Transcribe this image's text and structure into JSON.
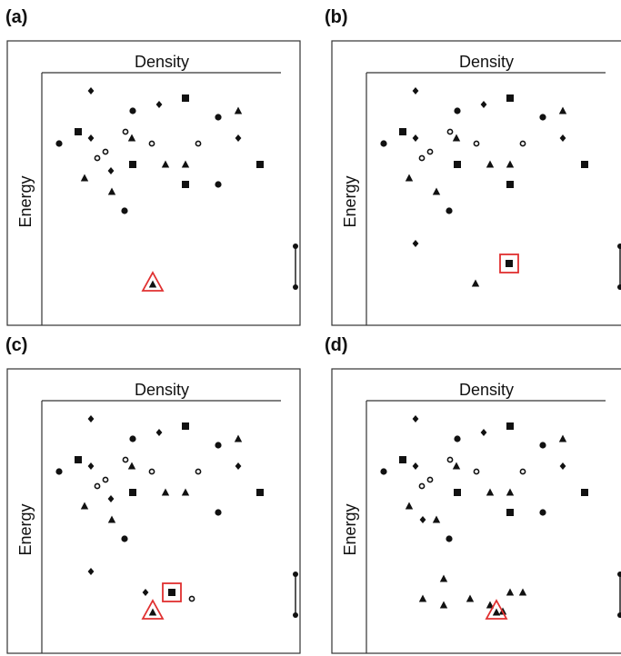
{
  "colors": {
    "ink": "#111111",
    "highlight": "#e03030",
    "frame": "#333333"
  },
  "panels": [
    {
      "letter": "(a)",
      "xlabel": "Density",
      "ylabel": "Energy",
      "highlight": {
        "shape": "triangle-frame",
        "marker": "triangle"
      },
      "points": [
        [
          "diamond",
          100,
          100
        ],
        [
          "circle",
          65,
          158
        ],
        [
          "square",
          86,
          145
        ],
        [
          "diamond",
          100,
          152
        ],
        [
          "open-circle",
          116,
          167
        ],
        [
          "open-circle",
          107,
          174
        ],
        [
          "diamond",
          122,
          188
        ],
        [
          "triangle",
          93,
          196
        ],
        [
          "triangle",
          123,
          211
        ],
        [
          "circle",
          137,
          232
        ],
        [
          "open-circle",
          138,
          145
        ],
        [
          "triangle",
          145,
          152
        ],
        [
          "circle",
          146,
          122
        ],
        [
          "square",
          146,
          181
        ],
        [
          "diamond",
          175,
          115
        ],
        [
          "square",
          204,
          108
        ],
        [
          "open-circle",
          167,
          158
        ],
        [
          "triangle",
          182,
          181
        ],
        [
          "triangle",
          204,
          181
        ],
        [
          "square",
          204,
          203
        ],
        [
          "circle",
          240,
          129
        ],
        [
          "triangle",
          262,
          122
        ],
        [
          "diamond",
          262,
          152
        ],
        [
          "open-circle",
          218,
          158
        ],
        [
          "circle",
          240,
          203
        ],
        [
          "square",
          286,
          181
        ]
      ]
    },
    {
      "letter": "(b)",
      "xlabel": "Density",
      "ylabel": "Energy",
      "highlight": {
        "shape": "square-frame",
        "marker": "square"
      },
      "points": [
        [
          "diamond",
          100,
          100
        ],
        [
          "circle",
          65,
          158
        ],
        [
          "square",
          86,
          145
        ],
        [
          "diamond",
          100,
          152
        ],
        [
          "open-circle",
          116,
          167
        ],
        [
          "open-circle",
          107,
          174
        ],
        [
          "triangle",
          93,
          196
        ],
        [
          "triangle",
          123,
          211
        ],
        [
          "circle",
          137,
          232
        ],
        [
          "open-circle",
          138,
          145
        ],
        [
          "triangle",
          145,
          152
        ],
        [
          "circle",
          146,
          122
        ],
        [
          "square",
          146,
          181
        ],
        [
          "diamond",
          175,
          115
        ],
        [
          "square",
          204,
          108
        ],
        [
          "open-circle",
          167,
          158
        ],
        [
          "triangle",
          182,
          181
        ],
        [
          "triangle",
          204,
          181
        ],
        [
          "square",
          204,
          203
        ],
        [
          "circle",
          240,
          129
        ],
        [
          "triangle",
          262,
          122
        ],
        [
          "diamond",
          262,
          152
        ],
        [
          "open-circle",
          218,
          158
        ],
        [
          "square",
          286,
          181
        ],
        [
          "diamond",
          100,
          268
        ],
        [
          "triangle",
          166,
          312
        ]
      ]
    },
    {
      "letter": "(c)",
      "xlabel": "Density",
      "ylabel": "Energy",
      "highlight": {
        "shape": "square-and-triangle-frames",
        "marker": "square"
      },
      "points": [
        [
          "diamond",
          100,
          100
        ],
        [
          "circle",
          65,
          158
        ],
        [
          "square",
          86,
          145
        ],
        [
          "diamond",
          100,
          152
        ],
        [
          "open-circle",
          116,
          167
        ],
        [
          "open-circle",
          107,
          174
        ],
        [
          "diamond",
          122,
          188
        ],
        [
          "triangle",
          93,
          196
        ],
        [
          "triangle",
          123,
          211
        ],
        [
          "circle",
          137,
          232
        ],
        [
          "open-circle",
          138,
          145
        ],
        [
          "triangle",
          145,
          152
        ],
        [
          "circle",
          146,
          122
        ],
        [
          "square",
          146,
          181
        ],
        [
          "diamond",
          175,
          115
        ],
        [
          "square",
          204,
          108
        ],
        [
          "open-circle",
          167,
          158
        ],
        [
          "triangle",
          182,
          181
        ],
        [
          "triangle",
          204,
          181
        ],
        [
          "circle",
          240,
          129
        ],
        [
          "triangle",
          262,
          122
        ],
        [
          "diamond",
          262,
          152
        ],
        [
          "open-circle",
          218,
          158
        ],
        [
          "circle",
          240,
          203
        ],
        [
          "square",
          286,
          181
        ],
        [
          "diamond",
          100,
          268
        ],
        [
          "diamond",
          160,
          291
        ],
        [
          "open-circle",
          211,
          298
        ]
      ]
    },
    {
      "letter": "(d)",
      "xlabel": "Density",
      "ylabel": "Energy",
      "highlight": {
        "shape": "triangle-frame",
        "marker": "triangle"
      },
      "points": [
        [
          "diamond",
          100,
          100
        ],
        [
          "circle",
          65,
          158
        ],
        [
          "square",
          86,
          145
        ],
        [
          "diamond",
          100,
          152
        ],
        [
          "open-circle",
          116,
          167
        ],
        [
          "open-circle",
          107,
          174
        ],
        [
          "triangle",
          93,
          196
        ],
        [
          "diamond",
          108,
          211
        ],
        [
          "triangle",
          123,
          211
        ],
        [
          "circle",
          137,
          232
        ],
        [
          "open-circle",
          138,
          145
        ],
        [
          "triangle",
          145,
          152
        ],
        [
          "circle",
          146,
          122
        ],
        [
          "square",
          146,
          181
        ],
        [
          "diamond",
          175,
          115
        ],
        [
          "square",
          204,
          108
        ],
        [
          "open-circle",
          167,
          158
        ],
        [
          "triangle",
          182,
          181
        ],
        [
          "triangle",
          204,
          181
        ],
        [
          "square",
          204,
          203
        ],
        [
          "circle",
          240,
          129
        ],
        [
          "triangle",
          262,
          122
        ],
        [
          "diamond",
          262,
          152
        ],
        [
          "open-circle",
          218,
          158
        ],
        [
          "circle",
          240,
          203
        ],
        [
          "square",
          286,
          181
        ],
        [
          "triangle",
          131,
          276
        ],
        [
          "triangle",
          108,
          298
        ],
        [
          "triangle",
          131,
          305
        ],
        [
          "triangle",
          160,
          298
        ],
        [
          "triangle",
          182,
          305
        ],
        [
          "triangle",
          196,
          312
        ],
        [
          "triangle",
          204,
          291
        ],
        [
          "triangle",
          218,
          291
        ]
      ]
    }
  ]
}
